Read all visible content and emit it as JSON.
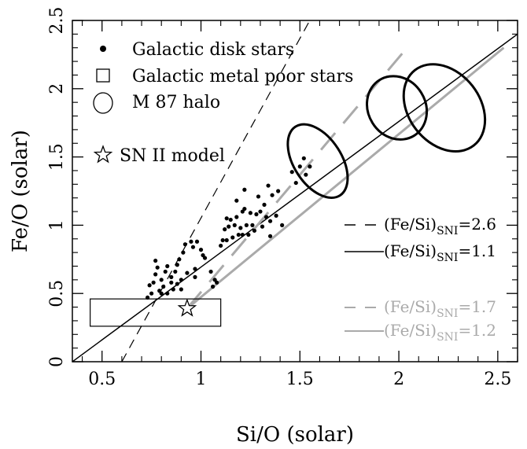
{
  "chart_data": {
    "type": "scatter",
    "xlabel": "Si/O (solar)",
    "ylabel": "Fe/O (solar)",
    "xlim": [
      0.35,
      2.6
    ],
    "ylim": [
      0,
      2.5
    ],
    "xticks": [
      {
        "value": 0.5,
        "label": "0.5"
      },
      {
        "value": 1,
        "label": "1"
      },
      {
        "value": 1.5,
        "label": "1.5"
      },
      {
        "value": 2,
        "label": "2"
      },
      {
        "value": 2.5,
        "label": "2.5"
      }
    ],
    "yticks": [
      {
        "value": 0,
        "label": "0"
      },
      {
        "value": 0.5,
        "label": "0.5"
      },
      {
        "value": 1,
        "label": "1"
      },
      {
        "value": 1.5,
        "label": "1.5"
      },
      {
        "value": 2,
        "label": "2"
      },
      {
        "value": 2.5,
        "label": "2.5"
      }
    ],
    "symbol_legend": [
      {
        "symbol": "dot",
        "label": "Galactic disk stars"
      },
      {
        "symbol": "square",
        "label": "Galactic metal poor stars"
      },
      {
        "symbol": "ellipse",
        "label": "M 87 halo"
      },
      {
        "symbol": "star",
        "label": "SN II model"
      }
    ],
    "line_legend": [
      {
        "prefix": "(Fe/Si)",
        "sub": "SNI",
        "suffix": "=2.6",
        "color": "#000000",
        "style": "dashed"
      },
      {
        "prefix": "(Fe/Si)",
        "sub": "SNI",
        "suffix": "=1.1",
        "color": "#000000",
        "style": "solid"
      },
      {
        "prefix": "(Fe/Si)",
        "sub": "SNI",
        "suffix": "=1.7",
        "color": "#aaaaaa",
        "style": "dashed"
      },
      {
        "prefix": "(Fe/Si)",
        "sub": "SNI",
        "suffix": "=1.2",
        "color": "#aaaaaa",
        "style": "solid"
      }
    ],
    "lines": [
      {
        "name": "black-dashed",
        "color": "#000000",
        "dash": "12,8",
        "width": 1.2,
        "points": [
          [
            0.6,
            0
          ],
          [
            1.55,
            2.5
          ]
        ]
      },
      {
        "name": "black-solid",
        "color": "#000000",
        "dash": "",
        "width": 1.5,
        "points": [
          [
            0.35,
            0
          ],
          [
            2.6,
            2.4
          ]
        ]
      },
      {
        "name": "gray-dashed",
        "color": "#aaaaaa",
        "dash": "28,16",
        "width": 3,
        "points": [
          [
            0.93,
            0.39
          ],
          [
            2.03,
            2.28
          ]
        ]
      },
      {
        "name": "gray-solid",
        "color": "#aaaaaa",
        "dash": "",
        "width": 3,
        "points": [
          [
            0.93,
            0.39
          ],
          [
            2.53,
            2.3
          ]
        ]
      }
    ],
    "disk_stars": [
      [
        0.73,
        0.47
      ],
      [
        0.75,
        0.5
      ],
      [
        0.74,
        0.56
      ],
      [
        0.76,
        0.58
      ],
      [
        0.77,
        0.64
      ],
      [
        0.78,
        0.69
      ],
      [
        0.77,
        0.74
      ],
      [
        0.79,
        0.52
      ],
      [
        0.8,
        0.5
      ],
      [
        0.81,
        0.55
      ],
      [
        0.8,
        0.6
      ],
      [
        0.82,
        0.66
      ],
      [
        0.83,
        0.7
      ],
      [
        0.83,
        0.5
      ],
      [
        0.85,
        0.58
      ],
      [
        0.85,
        0.62
      ],
      [
        0.86,
        0.53
      ],
      [
        0.87,
        0.66
      ],
      [
        0.88,
        0.71
      ],
      [
        0.88,
        0.57
      ],
      [
        0.89,
        0.75
      ],
      [
        0.9,
        0.6
      ],
      [
        0.9,
        0.53
      ],
      [
        0.91,
        0.8
      ],
      [
        0.92,
        0.86
      ],
      [
        0.93,
        0.65
      ],
      [
        0.95,
        0.88
      ],
      [
        0.96,
        0.84
      ],
      [
        0.97,
        0.62
      ],
      [
        0.98,
        0.88
      ],
      [
        1.0,
        0.82
      ],
      [
        1.01,
        0.78
      ],
      [
        1.02,
        0.76
      ],
      [
        1.05,
        0.66
      ],
      [
        1.06,
        0.55
      ],
      [
        1.07,
        0.6
      ],
      [
        1.1,
        0.85
      ],
      [
        1.11,
        0.89
      ],
      [
        1.12,
        0.97
      ],
      [
        1.13,
        1.05
      ],
      [
        1.14,
        0.99
      ],
      [
        1.15,
        1.04
      ],
      [
        1.16,
        0.91
      ],
      [
        1.17,
        1.0
      ],
      [
        1.18,
        1.06
      ],
      [
        1.19,
        0.93
      ],
      [
        1.2,
        0.98
      ],
      [
        1.21,
        1.1
      ],
      [
        1.21,
        0.93
      ],
      [
        1.22,
        1.12
      ],
      [
        1.22,
        1.26
      ],
      [
        1.23,
        1.0
      ],
      [
        1.24,
        0.93
      ],
      [
        1.25,
        1.09
      ],
      [
        1.26,
        1.0
      ],
      [
        1.27,
        0.96
      ],
      [
        1.28,
        1.08
      ],
      [
        1.29,
        1.21
      ],
      [
        1.3,
        1.1
      ],
      [
        1.31,
        0.99
      ],
      [
        1.32,
        1.15
      ],
      [
        1.33,
        1.06
      ],
      [
        1.34,
        1.29
      ],
      [
        1.35,
        1.03
      ],
      [
        1.35,
        0.92
      ],
      [
        1.36,
        1.22
      ],
      [
        1.38,
        1.07
      ],
      [
        1.39,
        1.25
      ],
      [
        1.41,
        1.0
      ],
      [
        1.46,
        1.39
      ],
      [
        1.48,
        1.31
      ],
      [
        1.5,
        1.43
      ],
      [
        1.52,
        1.49
      ],
      [
        1.53,
        1.37
      ],
      [
        1.55,
        1.43
      ],
      [
        1.13,
        0.89
      ],
      [
        1.18,
        1.18
      ],
      [
        1.08,
        0.58
      ],
      [
        0.97,
        0.68
      ]
    ],
    "metal_poor_box": {
      "x": [
        0.44,
        1.1
      ],
      "y": [
        0.26,
        0.46
      ]
    },
    "sn_ii_model": [
      0.93,
      0.39
    ],
    "m87_ellipses": [
      {
        "cx": 1.59,
        "cy": 1.47,
        "rx": 0.12,
        "ry": 0.3,
        "angle": -33
      },
      {
        "cx": 1.99,
        "cy": 1.86,
        "rx": 0.145,
        "ry": 0.24,
        "angle": -32
      },
      {
        "cx": 2.23,
        "cy": 1.86,
        "rx": 0.18,
        "ry": 0.35,
        "angle": -38
      }
    ]
  }
}
